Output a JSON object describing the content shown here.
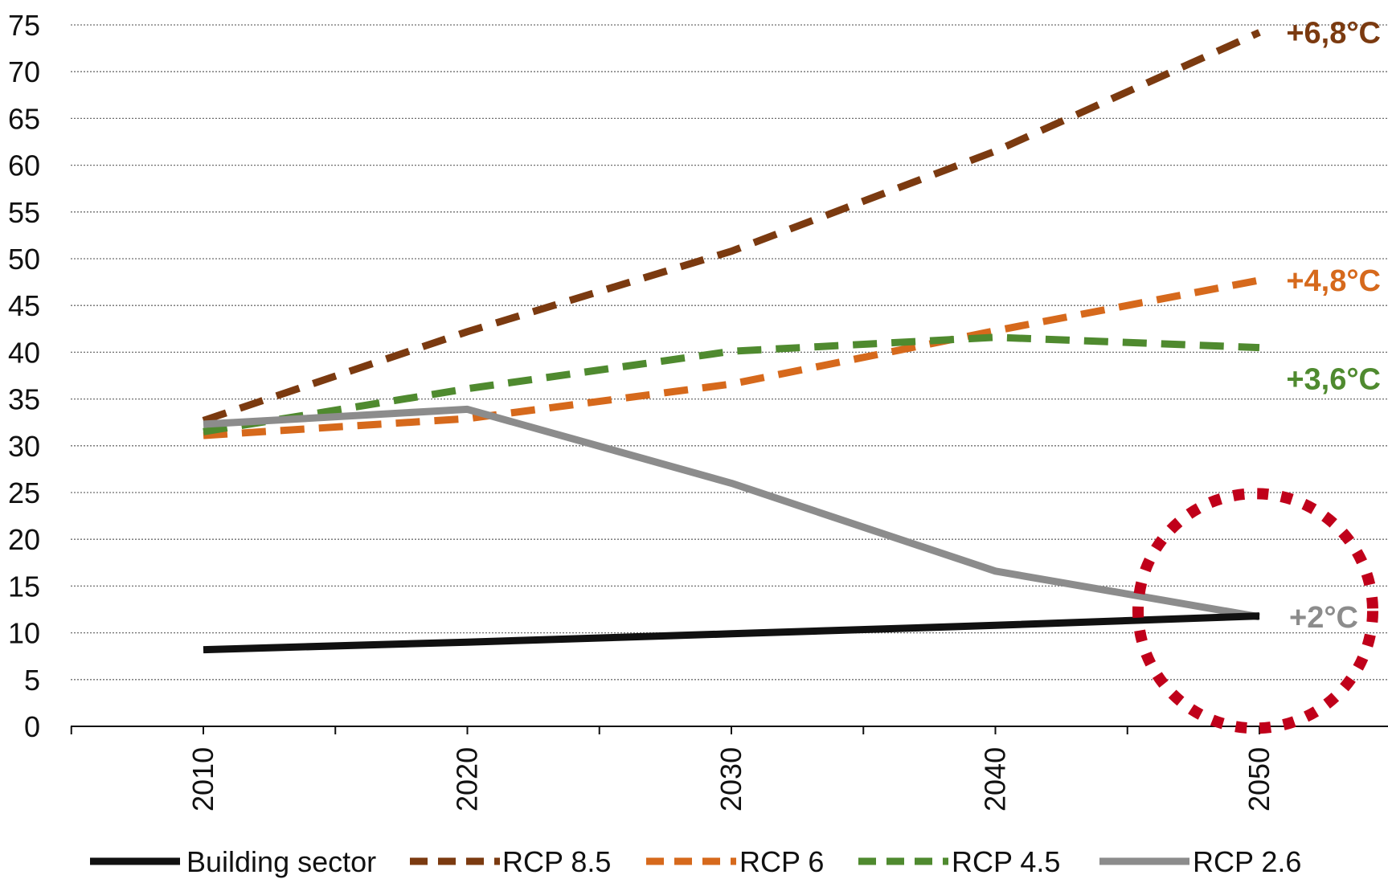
{
  "chart_data": {
    "type": "line",
    "title": "",
    "xlabel": "",
    "ylabel": "",
    "x": [
      2010,
      2020,
      2030,
      2040,
      2050
    ],
    "x_ticks": [
      "2010",
      "2020",
      "2030",
      "2040",
      "2050"
    ],
    "y_ticks": [
      "0",
      "5",
      "10",
      "15",
      "20",
      "25",
      "30",
      "35",
      "40",
      "45",
      "50",
      "55",
      "60",
      "65",
      "70",
      "75"
    ],
    "ylim": [
      0,
      75
    ],
    "xlim": [
      2005,
      2055
    ],
    "grid": "horizontal dotted",
    "legend_position": "bottom",
    "series": [
      {
        "name": "Building sector",
        "values": [
          8.2,
          9.0,
          9.9,
          10.8,
          11.8
        ],
        "color": "#111111",
        "style": "solid"
      },
      {
        "name": "RCP 8.5",
        "values": [
          32.7,
          42.2,
          50.8,
          61.5,
          74.2
        ],
        "color": "#7b3a10",
        "style": "dashed"
      },
      {
        "name": "RCP 6",
        "values": [
          31.1,
          32.9,
          36.6,
          42.3,
          47.7
        ],
        "color": "#d6691c",
        "style": "dashed"
      },
      {
        "name": "RCP 4.5",
        "values": [
          31.5,
          36.1,
          40.1,
          41.6,
          40.5
        ],
        "color": "#4f8a2f",
        "style": "dashed"
      },
      {
        "name": "RCP 2.6",
        "values": [
          32.3,
          33.9,
          26.0,
          16.6,
          11.7
        ],
        "color": "#8c8c8c",
        "style": "solid"
      }
    ],
    "annotations": [
      {
        "text": "+6,8°C",
        "series": "RCP 8.5",
        "color": "#7b3a10"
      },
      {
        "text": "+4,8°C",
        "series": "RCP 6",
        "color": "#d6691c"
      },
      {
        "text": "+3,6°C",
        "series": "RCP 4.5",
        "color": "#4f8a2f"
      },
      {
        "text": "+2°C",
        "series": "RCP 2.6",
        "color": "#8c8c8c"
      }
    ],
    "highlight_circle": {
      "x": 2050,
      "y": 12,
      "color": "#c0001a",
      "style": "dotted"
    }
  }
}
